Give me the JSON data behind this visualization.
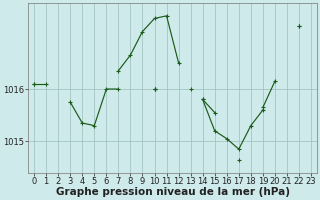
{
  "xlabel": "Graphe pression niveau de la mer (hPa)",
  "background_color": "#ceeaea",
  "plot_bg_color": "#ceeaea",
  "line_color": "#1a5c1a",
  "marker": "+",
  "hours": [
    0,
    1,
    2,
    3,
    4,
    5,
    6,
    7,
    8,
    9,
    10,
    11,
    12,
    13,
    14,
    15,
    16,
    17,
    18,
    19,
    20,
    21,
    22,
    23
  ],
  "ylim": [
    1014.4,
    1017.65
  ],
  "yticks": [
    1015,
    1016
  ],
  "grid_color": "#9cbebe",
  "font_color": "#222222",
  "xlabel_fontsize": 7.5,
  "tick_fontsize": 6.0,
  "series": [
    [
      1016.1,
      1016.1,
      null,
      null,
      null,
      null,
      null,
      1016.35,
      1016.65,
      1017.1,
      1017.35,
      1017.4,
      1016.5,
      null,
      1015.8,
      1015.55,
      null,
      null,
      null,
      null,
      null,
      null,
      1017.2,
      null
    ],
    [
      null,
      null,
      null,
      1015.75,
      1015.35,
      1015.3,
      1016.0,
      1016.0,
      null,
      null,
      1016.0,
      null,
      null,
      1016.0,
      null,
      null,
      null,
      null,
      null,
      null,
      null,
      null,
      null,
      null
    ],
    [
      1016.1,
      null,
      null,
      null,
      null,
      null,
      null,
      null,
      null,
      null,
      1016.0,
      null,
      null,
      null,
      null,
      null,
      null,
      1014.65,
      null,
      1015.65,
      1016.15,
      null,
      1017.2,
      null
    ],
    [
      null,
      null,
      null,
      null,
      null,
      null,
      null,
      null,
      null,
      null,
      1016.0,
      null,
      null,
      null,
      1015.8,
      1015.2,
      1015.05,
      1014.85,
      1015.3,
      1015.6,
      null,
      null,
      null,
      null
    ]
  ]
}
